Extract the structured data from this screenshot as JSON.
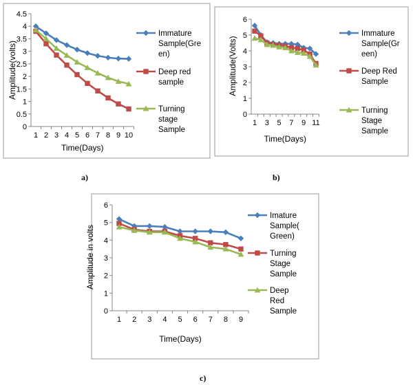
{
  "chart_data": [
    {
      "panel": "a)",
      "type": "line",
      "xlabel": "Time(Days)",
      "ylabel": "Amplitude(volts)",
      "x": [
        1,
        2,
        3,
        4,
        5,
        6,
        7,
        8,
        9,
        10
      ],
      "ylim": [
        0,
        4.5
      ],
      "ytick_step": 0.5,
      "yticks": [
        "0",
        "0.5",
        "1",
        "1.5",
        "2",
        "2.5",
        "3",
        "3.5",
        "4",
        "4.5"
      ],
      "xticks": [
        "1",
        "2",
        "3",
        "4",
        "5",
        "6",
        "7",
        "8",
        "9",
        "10"
      ],
      "grid": false,
      "legend_position": "right",
      "series": [
        {
          "name": "Immature Sample(Green)",
          "legend_lines": [
            "Immature",
            "Sample(Gre",
            "en)"
          ],
          "color": "#4a7ebb",
          "marker": "diamond",
          "values": [
            4.0,
            3.72,
            3.45,
            3.25,
            3.07,
            2.93,
            2.82,
            2.75,
            2.71,
            2.7
          ]
        },
        {
          "name": "Deep red sample",
          "legend_lines": [
            "Deep red",
            "sample"
          ],
          "color": "#be4b48",
          "marker": "square",
          "values": [
            3.8,
            3.3,
            2.85,
            2.45,
            2.07,
            1.72,
            1.42,
            1.14,
            0.9,
            0.7
          ]
        },
        {
          "name": "Turning stage Sample",
          "legend_lines": [
            "Turning",
            "stage",
            "Sample"
          ],
          "color": "#98b954",
          "marker": "triangle",
          "values": [
            3.85,
            3.5,
            3.12,
            2.84,
            2.57,
            2.35,
            2.13,
            1.95,
            1.8,
            1.7
          ]
        }
      ]
    },
    {
      "panel": "b)",
      "type": "line",
      "xlabel": "Time(Days)",
      "ylabel": "Amplitude(Volts)",
      "x": [
        1,
        2,
        3,
        4,
        5,
        6,
        7,
        8,
        9,
        10,
        11
      ],
      "xticks": [
        "1",
        "3",
        "5",
        "7",
        "9",
        "11"
      ],
      "xtick_values": [
        1,
        3,
        5,
        7,
        9,
        11
      ],
      "ylim": [
        0,
        6
      ],
      "ytick_step": 1,
      "yticks": [
        "0",
        "1",
        "2",
        "3",
        "4",
        "5",
        "6"
      ],
      "grid": false,
      "legend_position": "right",
      "series": [
        {
          "name": "Immature Sample(Green)",
          "legend_lines": [
            "Immature",
            "Sample(Gr",
            "een)"
          ],
          "color": "#4a7ebb",
          "marker": "diamond",
          "values": [
            5.6,
            5.0,
            4.55,
            4.5,
            4.45,
            4.45,
            4.45,
            4.4,
            4.2,
            4.15,
            3.8
          ]
        },
        {
          "name": "Deep Red Sample",
          "legend_lines": [
            "Deep Red",
            "Sample"
          ],
          "color": "#be4b48",
          "marker": "square",
          "values": [
            5.25,
            4.95,
            4.5,
            4.4,
            4.35,
            4.3,
            4.2,
            4.15,
            4.05,
            3.8,
            3.2
          ]
        },
        {
          "name": "Turning Stage Sample",
          "legend_lines": [
            "Turning",
            "Stage",
            "Sample"
          ],
          "color": "#98b954",
          "marker": "triangle",
          "values": [
            4.8,
            4.7,
            4.4,
            4.35,
            4.25,
            4.2,
            4.0,
            3.9,
            3.85,
            3.65,
            3.1
          ]
        }
      ]
    },
    {
      "panel": "c)",
      "type": "line",
      "xlabel": "Time(Days)",
      "ylabel": "Amplitude in volts",
      "x": [
        1,
        2,
        3,
        4,
        5,
        6,
        7,
        8,
        9
      ],
      "xticks": [
        "1",
        "2",
        "3",
        "4",
        "5",
        "6",
        "7",
        "8",
        "9"
      ],
      "ylim": [
        0,
        6
      ],
      "ytick_step": 1,
      "yticks": [
        "0",
        "1",
        "2",
        "3",
        "4",
        "5",
        "6"
      ],
      "grid": false,
      "legend_position": "right",
      "series": [
        {
          "name": "Imature Sample(Green)",
          "legend_lines": [
            "Imature",
            "Sample(",
            "Green)"
          ],
          "color": "#4a7ebb",
          "marker": "diamond",
          "values": [
            5.2,
            4.8,
            4.8,
            4.75,
            4.5,
            4.5,
            4.5,
            4.45,
            4.1
          ]
        },
        {
          "name": "Turning Stage Sample",
          "legend_lines": [
            "Turning",
            "Stage",
            "Sample"
          ],
          "color": "#be4b48",
          "marker": "square",
          "values": [
            4.95,
            4.6,
            4.5,
            4.5,
            4.25,
            4.1,
            3.85,
            3.75,
            3.5
          ]
        },
        {
          "name": "Deep Red Sample",
          "legend_lines": [
            "Deep",
            "Red",
            "Sample"
          ],
          "color": "#98b954",
          "marker": "triangle",
          "values": [
            4.75,
            4.55,
            4.45,
            4.45,
            4.1,
            3.9,
            3.6,
            3.5,
            3.2
          ]
        }
      ]
    }
  ]
}
